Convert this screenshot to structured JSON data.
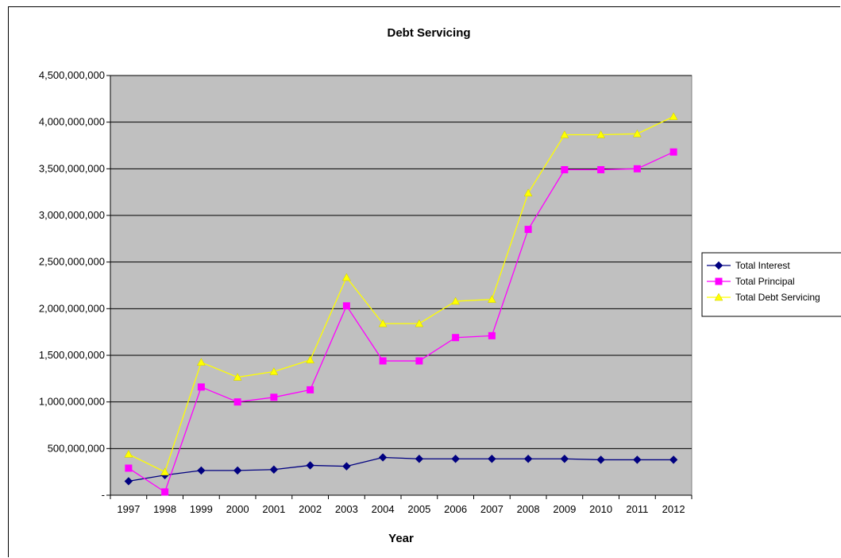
{
  "chart_data": {
    "type": "line",
    "title": "Debt Servicing",
    "xlabel": "Year",
    "ylabel": "",
    "categories": [
      "1997",
      "1998",
      "1999",
      "2000",
      "2001",
      "2002",
      "2003",
      "2004",
      "2005",
      "2006",
      "2007",
      "2008",
      "2009",
      "2010",
      "2011",
      "2012"
    ],
    "ylim": [
      0,
      4500000000
    ],
    "yticks": [
      {
        "value": 0,
        "label": "-"
      },
      {
        "value": 500000000,
        "label": "500,000,000"
      },
      {
        "value": 1000000000,
        "label": "1,000,000,000"
      },
      {
        "value": 1500000000,
        "label": "1,500,000,000"
      },
      {
        "value": 2000000000,
        "label": "2,000,000,000"
      },
      {
        "value": 2500000000,
        "label": "2,500,000,000"
      },
      {
        "value": 3000000000,
        "label": "3,000,000,000"
      },
      {
        "value": 3500000000,
        "label": "3,500,000,000"
      },
      {
        "value": 4000000000,
        "label": "4,000,000,000"
      },
      {
        "value": 4500000000,
        "label": "4,500,000,000"
      }
    ],
    "grid": true,
    "plot_background": "#c0c0c0",
    "legend_position": "right",
    "series": [
      {
        "name": "Total Interest",
        "color": "#000080",
        "marker": "diamond",
        "values": [
          150000000,
          215000000,
          265000000,
          265000000,
          275000000,
          320000000,
          310000000,
          405000000,
          390000000,
          390000000,
          390000000,
          390000000,
          390000000,
          380000000,
          380000000,
          380000000
        ]
      },
      {
        "name": "Total Principal",
        "color": "#ff00ff",
        "marker": "square",
        "values": [
          290000000,
          35000000,
          1160000000,
          1000000000,
          1050000000,
          1130000000,
          2030000000,
          1440000000,
          1440000000,
          1690000000,
          1710000000,
          2850000000,
          3490000000,
          3490000000,
          3500000000,
          3680000000
        ]
      },
      {
        "name": "Total Debt Servicing",
        "color": "#ffff00",
        "marker": "triangle",
        "values": [
          440000000,
          250000000,
          1425000000,
          1265000000,
          1325000000,
          1450000000,
          2335000000,
          1840000000,
          1840000000,
          2080000000,
          2100000000,
          3240000000,
          3865000000,
          3865000000,
          3875000000,
          4060000000
        ]
      }
    ]
  }
}
